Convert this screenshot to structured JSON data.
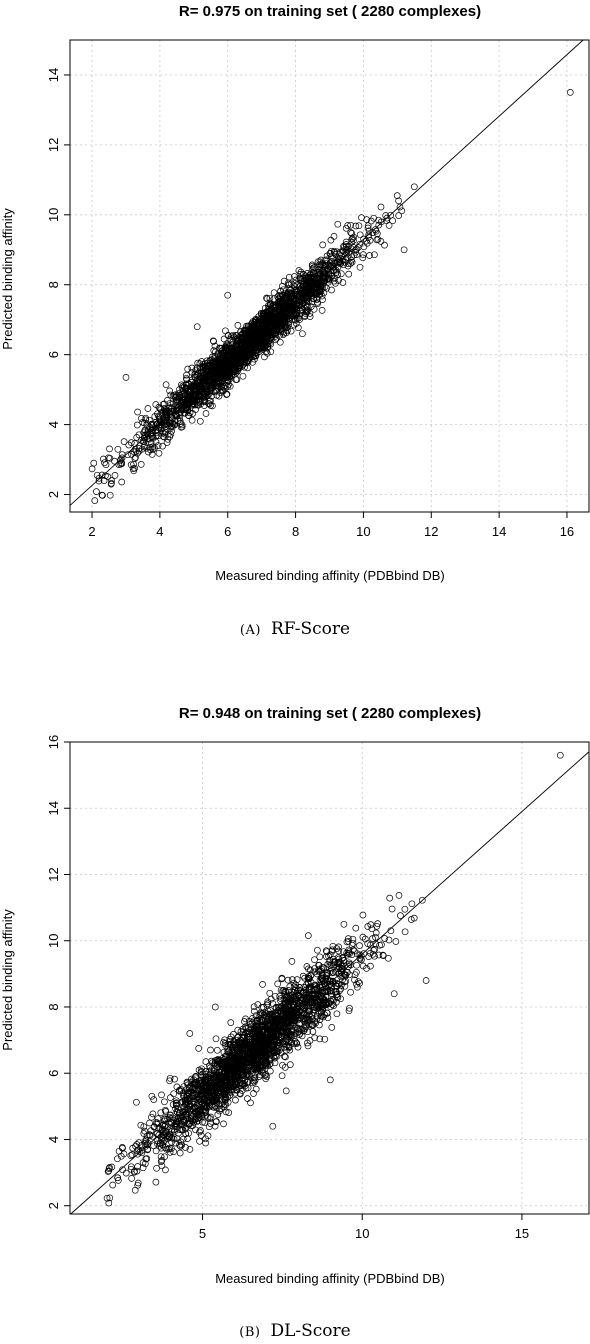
{
  "chart_data": [
    {
      "type": "scatter",
      "title": "R= 0.975 on training set ( 2280  complexes)",
      "xlabel": "Measured binding affinity (PDBbind DB)",
      "ylabel": "Predicted binding affinity",
      "xlim": [
        1.35,
        16.65
      ],
      "ylim": [
        1.5,
        15.0
      ],
      "xticks": [
        "2",
        "4",
        "6",
        "8",
        "10",
        "12",
        "14",
        "16"
      ],
      "yticks": [
        "2",
        "4",
        "6",
        "8",
        "10",
        "12",
        "14"
      ],
      "grid": true,
      "reference_line": {
        "intercept": 0.5,
        "slope": 0.88
      },
      "n_points": 2280,
      "point_model": {
        "slope": 0.88,
        "intercept": 0.5,
        "noise": 0.32,
        "x_center": 6.6,
        "x_spread": 1.6,
        "x_min": 2.0,
        "x_max": 12.0
      },
      "outliers": [
        [
          16.1,
          13.5
        ],
        [
          3.0,
          5.35
        ],
        [
          6.0,
          7.7
        ],
        [
          9.9,
          8.5
        ],
        [
          8.2,
          6.6
        ],
        [
          5.1,
          6.8
        ],
        [
          11.2,
          9.0
        ],
        [
          11.5,
          10.8
        ]
      ],
      "caption_tag": "(A)",
      "caption": "RF-Score"
    },
    {
      "type": "scatter",
      "title": "R= 0.948 on training set ( 2280  complexes)",
      "xlabel": "Measured binding affinity (PDBbind DB)",
      "ylabel": "Predicted binding affinity",
      "xlim": [
        0.85,
        17.1
      ],
      "ylim": [
        1.75,
        16.0
      ],
      "xticks": [
        "5",
        "10",
        "15"
      ],
      "yticks": [
        "2",
        "4",
        "6",
        "8",
        "10",
        "12",
        "14",
        "16"
      ],
      "grid": true,
      "reference_line": {
        "intercept": 1.0,
        "slope": 0.86
      },
      "n_points": 2280,
      "point_model": {
        "slope": 0.86,
        "intercept": 1.0,
        "noise": 0.5,
        "x_center": 6.6,
        "x_spread": 1.7,
        "x_min": 2.0,
        "x_max": 12.0
      },
      "outliers": [
        [
          16.2,
          15.6
        ],
        [
          12.0,
          8.8
        ],
        [
          7.2,
          4.4
        ],
        [
          5.4,
          8.0
        ],
        [
          9.0,
          5.8
        ],
        [
          4.6,
          7.2
        ],
        [
          11.0,
          8.4
        ],
        [
          6.9,
          6.0
        ]
      ],
      "caption_tag": "(B)",
      "caption": "DL-Score"
    }
  ]
}
